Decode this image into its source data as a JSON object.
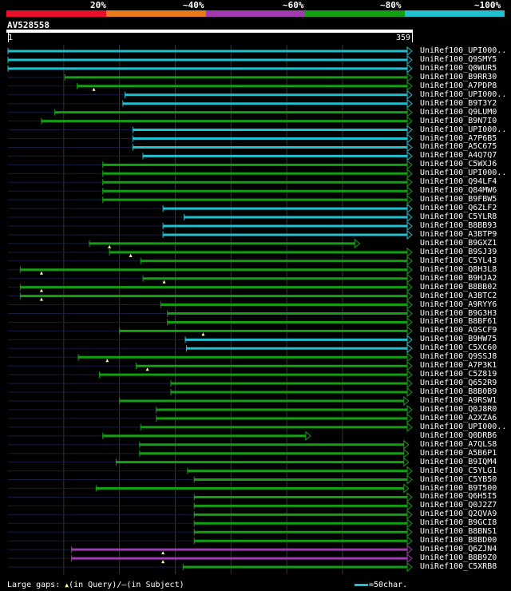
{
  "legend": {
    "labels": [
      "20%",
      "~40%",
      "~60%",
      "~80%",
      "~100%"
    ],
    "colors": [
      "#e8102a",
      "#e87a1a",
      "#a03ab0",
      "#12a012",
      "#1fc0d0"
    ]
  },
  "query": {
    "name": "AV528558",
    "start_label": "1",
    "end_label": "359",
    "length": 359
  },
  "hits": [
    {
      "label": "UniRef100_UPI000..",
      "start": 1,
      "end": 359,
      "color": "#1fc0d0",
      "arrow": true
    },
    {
      "label": "UniRef100_Q9SMY5",
      "start": 1,
      "end": 359,
      "color": "#1fc0d0",
      "arrow": true
    },
    {
      "label": "UniRef100_Q0WUR5",
      "start": 1,
      "end": 359,
      "color": "#1fc0d0",
      "arrow": true
    },
    {
      "label": "UniRef100_B9RR30",
      "start": 52,
      "end": 359,
      "color": "#12a012",
      "arrow": true
    },
    {
      "label": "UniRef100_A7PDP8",
      "start": 63,
      "end": 359,
      "color": "#12a012",
      "arrow": true,
      "mark": 78
    },
    {
      "label": "UniRef100_UPI000..",
      "start": 106,
      "end": 359,
      "color": "#1fc0d0",
      "arrow": true
    },
    {
      "label": "UniRef100_B9T3Y2",
      "start": 104,
      "end": 359,
      "color": "#1fc0d0",
      "arrow": true
    },
    {
      "label": "UniRef100_Q9LUM0",
      "start": 43,
      "end": 359,
      "color": "#12a012",
      "arrow": true
    },
    {
      "label": "UniRef100_B9N7I0",
      "start": 31,
      "end": 359,
      "color": "#12a012",
      "arrow": true
    },
    {
      "label": "UniRef100_UPI000..",
      "start": 113,
      "end": 359,
      "color": "#1fc0d0",
      "arrow": true
    },
    {
      "label": "UniRef100_A7P6B5",
      "start": 113,
      "end": 359,
      "color": "#1fc0d0",
      "arrow": true
    },
    {
      "label": "UniRef100_A5C675",
      "start": 113,
      "end": 359,
      "color": "#1fc0d0",
      "arrow": true
    },
    {
      "label": "UniRef100_A4Q7Q7",
      "start": 122,
      "end": 359,
      "color": "#1fc0d0",
      "arrow": true
    },
    {
      "label": "UniRef100_C5WXJ6",
      "start": 86,
      "end": 359,
      "color": "#12a012",
      "arrow": true
    },
    {
      "label": "UniRef100_UPI000..",
      "start": 86,
      "end": 359,
      "color": "#12a012",
      "arrow": true
    },
    {
      "label": "UniRef100_Q94LF4",
      "start": 86,
      "end": 359,
      "color": "#12a012",
      "arrow": true
    },
    {
      "label": "UniRef100_Q84MW6",
      "start": 86,
      "end": 359,
      "color": "#12a012",
      "arrow": true
    },
    {
      "label": "UniRef100_B9FBW5",
      "start": 86,
      "end": 359,
      "color": "#12a012",
      "arrow": true
    },
    {
      "label": "UniRef100_Q6ZLF2",
      "start": 140,
      "end": 359,
      "color": "#1fc0d0",
      "arrow": true
    },
    {
      "label": "UniRef100_C5YLR8",
      "start": 159,
      "end": 359,
      "color": "#1fc0d0",
      "arrow": true
    },
    {
      "label": "UniRef100_B8BB93",
      "start": 140,
      "end": 359,
      "color": "#1fc0d0",
      "arrow": true
    },
    {
      "label": "UniRef100_A3BTP9",
      "start": 140,
      "end": 359,
      "color": "#1fc0d0",
      "arrow": true
    },
    {
      "label": "UniRef100_B9GXZ1",
      "start": 74,
      "end": 312,
      "color": "#12a012",
      "arrow": true,
      "mark": 92
    },
    {
      "label": "UniRef100_B9SJ39",
      "start": 92,
      "end": 359,
      "color": "#12a012",
      "arrow": true,
      "mark": 111
    },
    {
      "label": "UniRef100_C5YL43",
      "start": 120,
      "end": 359,
      "color": "#12a012",
      "arrow": true
    },
    {
      "label": "UniRef100_Q8H3L8",
      "start": 12,
      "end": 359,
      "color": "#12a012",
      "arrow": true,
      "mark": 31
    },
    {
      "label": "UniRef100_B9HJA2",
      "start": 122,
      "end": 359,
      "color": "#12a012",
      "arrow": true,
      "mark": 141
    },
    {
      "label": "UniRef100_B8BB02",
      "start": 12,
      "end": 359,
      "color": "#12a012",
      "arrow": true,
      "mark": 31
    },
    {
      "label": "UniRef100_A3BTC2",
      "start": 12,
      "end": 359,
      "color": "#12a012",
      "arrow": true,
      "mark": 31
    },
    {
      "label": "UniRef100_A9RYY6",
      "start": 138,
      "end": 359,
      "color": "#12a012",
      "arrow": true
    },
    {
      "label": "UniRef100_B9G3H3",
      "start": 144,
      "end": 359,
      "color": "#12a012",
      "arrow": true
    },
    {
      "label": "UniRef100_B8BF61",
      "start": 144,
      "end": 359,
      "color": "#12a012",
      "arrow": true
    },
    {
      "label": "UniRef100_A9SCF9",
      "start": 101,
      "end": 359,
      "color": "#12a012",
      "arrow": true,
      "mark": 176
    },
    {
      "label": "UniRef100_B9HW75",
      "start": 160,
      "end": 359,
      "color": "#1fc0d0",
      "arrow": true
    },
    {
      "label": "UniRef100_C5XC60",
      "start": 161,
      "end": 359,
      "color": "#1fc0d0",
      "arrow": true
    },
    {
      "label": "UniRef100_Q9SSJ8",
      "start": 64,
      "end": 359,
      "color": "#12a012",
      "arrow": true,
      "mark": 90
    },
    {
      "label": "UniRef100_A7P3K1",
      "start": 116,
      "end": 359,
      "color": "#12a012",
      "arrow": true,
      "mark": 126
    },
    {
      "label": "UniRef100_C5Z819",
      "start": 83,
      "end": 359,
      "color": "#12a012",
      "arrow": true
    },
    {
      "label": "UniRef100_Q652R9",
      "start": 147,
      "end": 359,
      "color": "#12a012",
      "arrow": true
    },
    {
      "label": "UniRef100_B8B0B9",
      "start": 147,
      "end": 359,
      "color": "#12a012",
      "arrow": true
    },
    {
      "label": "UniRef100_A9RSW1",
      "start": 101,
      "end": 356,
      "color": "#12a012",
      "arrow": true
    },
    {
      "label": "UniRef100_Q0J8R0",
      "start": 134,
      "end": 359,
      "color": "#12a012",
      "arrow": true
    },
    {
      "label": "UniRef100_A2XZA6",
      "start": 134,
      "end": 359,
      "color": "#12a012",
      "arrow": true
    },
    {
      "label": "UniRef100_UPI000..",
      "start": 120,
      "end": 359,
      "color": "#12a012",
      "arrow": true
    },
    {
      "label": "UniRef100_Q0DRB6",
      "start": 86,
      "end": 268,
      "color": "#12a012",
      "arrow": true
    },
    {
      "label": "UniRef100_A7QLS8",
      "start": 119,
      "end": 356,
      "color": "#12a012",
      "arrow": true
    },
    {
      "label": "UniRef100_A5B6P1",
      "start": 119,
      "end": 356,
      "color": "#12a012",
      "arrow": true
    },
    {
      "label": "UniRef100_B9IQM4",
      "start": 98,
      "end": 356,
      "color": "#12a012",
      "arrow": true
    },
    {
      "label": "UniRef100_C5YLG1",
      "start": 162,
      "end": 359,
      "color": "#12a012",
      "arrow": true
    },
    {
      "label": "UniRef100_C5YB50",
      "start": 168,
      "end": 359,
      "color": "#12a012",
      "arrow": true
    },
    {
      "label": "UniRef100_B9T500",
      "start": 80,
      "end": 356,
      "color": "#12a012",
      "arrow": true
    },
    {
      "label": "UniRef100_Q6H5I5",
      "start": 168,
      "end": 359,
      "color": "#12a012",
      "arrow": true
    },
    {
      "label": "UniRef100_Q0J2Z7",
      "start": 168,
      "end": 359,
      "color": "#12a012",
      "arrow": true
    },
    {
      "label": "UniRef100_Q2QVA9",
      "start": 168,
      "end": 359,
      "color": "#12a012",
      "arrow": true
    },
    {
      "label": "UniRef100_B9GCI8",
      "start": 168,
      "end": 359,
      "color": "#12a012",
      "arrow": true
    },
    {
      "label": "UniRef100_B8BNS1",
      "start": 168,
      "end": 359,
      "color": "#12a012",
      "arrow": true
    },
    {
      "label": "UniRef100_B8BD00",
      "start": 168,
      "end": 359,
      "color": "#12a012",
      "arrow": true
    },
    {
      "label": "UniRef100_Q6ZJN4",
      "start": 58,
      "end": 359,
      "color": "#a03ab0",
      "arrow": true,
      "mark": 140
    },
    {
      "label": "UniRef100_B8B9Z0",
      "start": 58,
      "end": 359,
      "color": "#a03ab0",
      "arrow": true,
      "mark": 140
    },
    {
      "label": "UniRef100_C5XRB8",
      "start": 158,
      "end": 359,
      "color": "#12a012",
      "arrow": true
    }
  ],
  "footer": {
    "large_gaps": "Large gaps:",
    "query_marker": "▲",
    "in_query": "(in Query)/",
    "subject_marker": "—",
    "in_subject": "(in Subject)",
    "scale": "=50char."
  }
}
